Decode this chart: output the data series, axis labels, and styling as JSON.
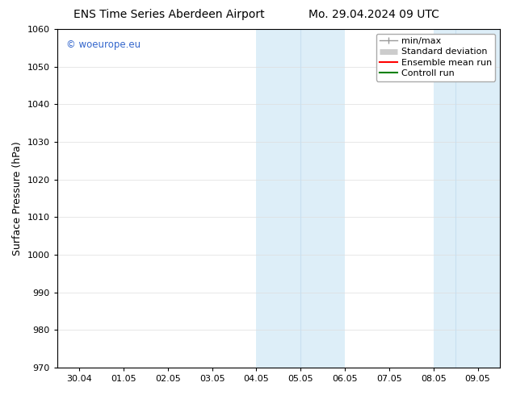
{
  "title_left": "ENS Time Series Aberdeen Airport",
  "title_right": "Mo. 29.04.2024 09 UTC",
  "ylabel": "Surface Pressure (hPa)",
  "ylim": [
    970,
    1060
  ],
  "yticks": [
    970,
    980,
    990,
    1000,
    1010,
    1020,
    1030,
    1040,
    1050,
    1060
  ],
  "xtick_positions": [
    0,
    1,
    2,
    3,
    4,
    5,
    6,
    7,
    8,
    9
  ],
  "xtick_labels": [
    "30.04",
    "01.05",
    "02.05",
    "03.05",
    "04.05",
    "05.05",
    "06.05",
    "07.05",
    "08.05",
    "09.05"
  ],
  "xlim": [
    -0.5,
    9.5
  ],
  "shaded_regions": [
    {
      "xstart": 4.0,
      "xend": 6.0,
      "color": "#ddeef8"
    },
    {
      "xstart": 8.0,
      "xend": 9.5,
      "color": "#ddeef8"
    }
  ],
  "shaded_line_x": [
    5.0,
    8.5
  ],
  "watermark_text": "© woeurope.eu",
  "watermark_color": "#3366cc",
  "legend_entries": [
    {
      "label": "min/max",
      "color": "#999999",
      "lw": 1.0
    },
    {
      "label": "Standard deviation",
      "color": "#cccccc",
      "lw": 5
    },
    {
      "label": "Ensemble mean run",
      "color": "#ff0000",
      "lw": 1.5
    },
    {
      "label": "Controll run",
      "color": "#008000",
      "lw": 1.5
    }
  ],
  "bg_color": "#ffffff",
  "plot_bg_color": "#ffffff",
  "title_fontsize": 10,
  "tick_fontsize": 8,
  "ylabel_fontsize": 9,
  "legend_fontsize": 8
}
